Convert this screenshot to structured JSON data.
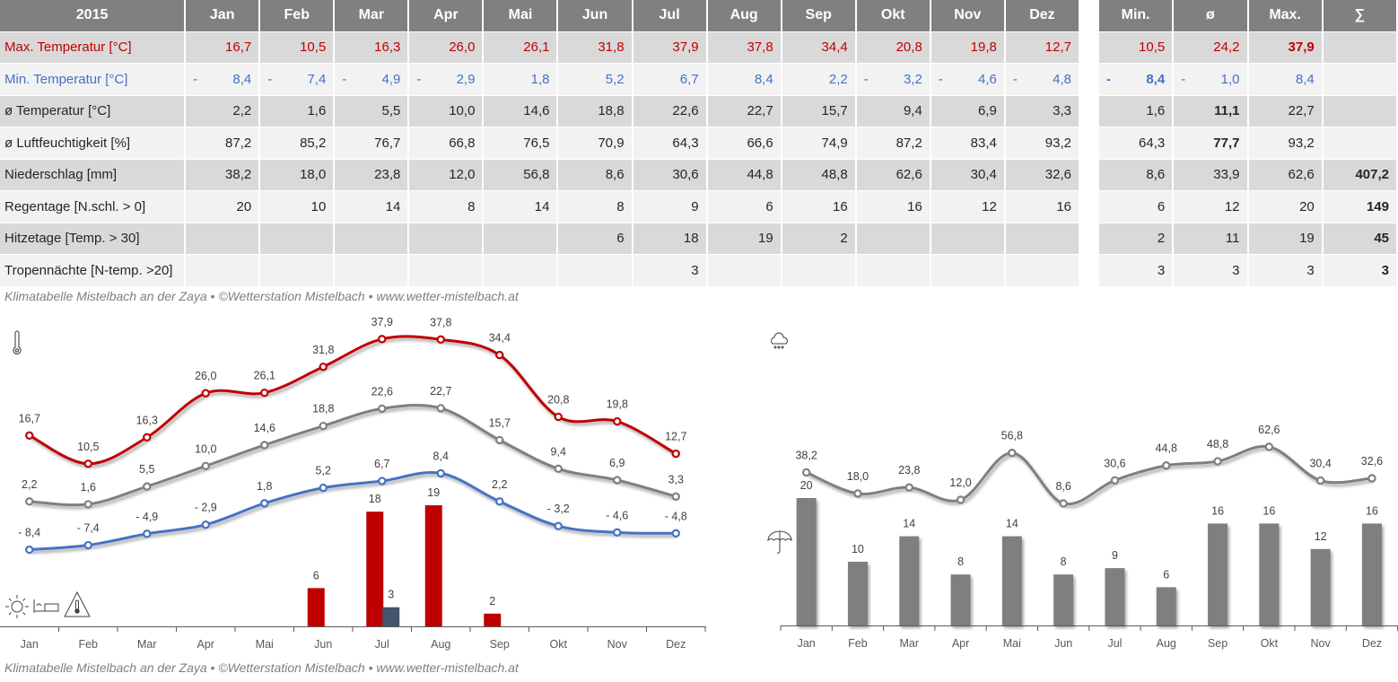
{
  "table": {
    "year_label": "2015",
    "months": [
      "Jan",
      "Feb",
      "Mar",
      "Apr",
      "Mai",
      "Jun",
      "Jul",
      "Aug",
      "Sep",
      "Okt",
      "Nov",
      "Dez"
    ],
    "stats_headers": [
      "Min.",
      "ø",
      "Max.",
      "∑"
    ],
    "rows": [
      {
        "label": "Max. Temperatur [°C]",
        "style": "red",
        "values": [
          "16,7",
          "10,5",
          "16,3",
          "26,0",
          "26,1",
          "31,8",
          "37,9",
          "37,8",
          "34,4",
          "20,8",
          "19,8",
          "12,7"
        ],
        "stats": [
          "10,5",
          "24,2",
          "37,9",
          ""
        ],
        "stats_bold": [
          false,
          false,
          true,
          false
        ]
      },
      {
        "label": "Min. Temperatur [°C]",
        "style": "blue",
        "values": [
          "-8,4",
          "-7,4",
          "-4,9",
          "-2,9",
          "1,8",
          "5,2",
          "6,7",
          "8,4",
          "2,2",
          "-3,2",
          "-4,6",
          "-4,8"
        ],
        "stats": [
          "-8,4",
          "-1,0",
          "8,4",
          ""
        ],
        "stats_bold": [
          true,
          false,
          false,
          false
        ]
      },
      {
        "label": "ø Temperatur [°C]",
        "style": "",
        "values": [
          "2,2",
          "1,6",
          "5,5",
          "10,0",
          "14,6",
          "18,8",
          "22,6",
          "22,7",
          "15,7",
          "9,4",
          "6,9",
          "3,3"
        ],
        "stats": [
          "1,6",
          "11,1",
          "22,7",
          ""
        ],
        "stats_bold": [
          false,
          true,
          false,
          false
        ]
      },
      {
        "label": "ø Luftfeuchtigkeit [%]",
        "style": "",
        "values": [
          "87,2",
          "85,2",
          "76,7",
          "66,8",
          "76,5",
          "70,9",
          "64,3",
          "66,6",
          "74,9",
          "87,2",
          "83,4",
          "93,2"
        ],
        "stats": [
          "64,3",
          "77,7",
          "93,2",
          ""
        ],
        "stats_bold": [
          false,
          true,
          false,
          false
        ]
      },
      {
        "label": "Niederschlag [mm]",
        "style": "",
        "values": [
          "38,2",
          "18,0",
          "23,8",
          "12,0",
          "56,8",
          "8,6",
          "30,6",
          "44,8",
          "48,8",
          "62,6",
          "30,4",
          "32,6"
        ],
        "stats": [
          "8,6",
          "33,9",
          "62,6",
          "407,2"
        ],
        "stats_bold": [
          false,
          false,
          false,
          true
        ]
      },
      {
        "label": "Regentage [N.schl. > 0]",
        "style": "",
        "values": [
          "20",
          "10",
          "14",
          "8",
          "14",
          "8",
          "9",
          "6",
          "16",
          "16",
          "12",
          "16"
        ],
        "stats": [
          "6",
          "12",
          "20",
          "149"
        ],
        "stats_bold": [
          false,
          false,
          false,
          true
        ]
      },
      {
        "label": "Hitzetage [Temp. > 30]",
        "style": "",
        "values": [
          "",
          "",
          "",
          "",
          "",
          "6",
          "18",
          "19",
          "2",
          "",
          "",
          ""
        ],
        "stats": [
          "2",
          "11",
          "19",
          "45"
        ],
        "stats_bold": [
          false,
          false,
          false,
          true
        ]
      },
      {
        "label": "Tropennächte [N-temp. >20]",
        "style": "",
        "values": [
          "",
          "",
          "",
          "",
          "",
          "",
          "3",
          "",
          "",
          "",
          "",
          ""
        ],
        "stats": [
          "3",
          "3",
          "3",
          "3"
        ],
        "stats_bold": [
          false,
          false,
          false,
          true
        ]
      }
    ]
  },
  "footer_text": "Klimatabelle Mistelbach an der Zaya  •  ©Wetterstation Mistelbach  •  www.wetter-mistelbach.at",
  "colors": {
    "max": "#c00000",
    "min": "#4472c4",
    "avg": "#7f7f7f",
    "hitze": "#c00000",
    "tropen": "#44546a",
    "rain": "#7f7f7f",
    "header": "#808080"
  },
  "icons": {
    "temp_chart": "thermometer-icon",
    "rain_chart": "rain-cloud-icon",
    "rain_days": "umbrella-icon",
    "heat_days": "sun-icon",
    "tropical_nights": "bed-icon",
    "warning": "heat-warning-icon"
  },
  "chart_data": [
    {
      "type": "line",
      "title": "",
      "categories": [
        "Jan",
        "Feb",
        "Mar",
        "Apr",
        "Mai",
        "Jun",
        "Jul",
        "Aug",
        "Sep",
        "Okt",
        "Nov",
        "Dez"
      ],
      "series": [
        {
          "name": "Max. Temperatur [°C]",
          "kind": "line",
          "values": [
            16.7,
            10.5,
            16.3,
            26.0,
            26.1,
            31.8,
            37.9,
            37.8,
            34.4,
            20.8,
            19.8,
            12.7
          ],
          "labels": [
            "16,7",
            "10,5",
            "16,3",
            "26,0",
            "26,1",
            "31,8",
            "37,9",
            "37,8",
            "34,4",
            "20,8",
            "19,8",
            "12,7"
          ]
        },
        {
          "name": "ø Temperatur [°C]",
          "kind": "line",
          "values": [
            2.2,
            1.6,
            5.5,
            10.0,
            14.6,
            18.8,
            22.6,
            22.7,
            15.7,
            9.4,
            6.9,
            3.3
          ],
          "labels": [
            "2,2",
            "1,6",
            "5,5",
            "10,0",
            "14,6",
            "18,8",
            "22,6",
            "22,7",
            "15,7",
            "9,4",
            "6,9",
            "3,3"
          ]
        },
        {
          "name": "Min. Temperatur [°C]",
          "kind": "line",
          "values": [
            -8.4,
            -7.4,
            -4.9,
            -2.9,
            1.8,
            5.2,
            6.7,
            8.4,
            2.2,
            -3.2,
            -4.6,
            -4.8
          ],
          "labels": [
            "- 8,4",
            "- 7,4",
            "- 4,9",
            "- 2,9",
            "1,8",
            "5,2",
            "6,7",
            "8,4",
            "2,2",
            "- 3,2",
            "- 4,6",
            "- 4,8"
          ]
        },
        {
          "name": "Hitzetage [Temp. > 30]",
          "kind": "bar",
          "values": [
            null,
            null,
            null,
            null,
            null,
            6,
            18,
            19,
            2,
            null,
            null,
            null
          ]
        },
        {
          "name": "Tropennächte [N-temp. >20]",
          "kind": "bar",
          "values": [
            null,
            null,
            null,
            null,
            null,
            null,
            3,
            null,
            null,
            null,
            null,
            null
          ]
        }
      ],
      "xlabel": "",
      "ylabel": "",
      "grid": false,
      "legend": "none"
    },
    {
      "type": "line",
      "title": "",
      "categories": [
        "Jan",
        "Feb",
        "Mar",
        "Apr",
        "Mai",
        "Jun",
        "Jul",
        "Aug",
        "Sep",
        "Okt",
        "Nov",
        "Dez"
      ],
      "series": [
        {
          "name": "Niederschlag [mm]",
          "kind": "line",
          "values": [
            38.2,
            18.0,
            23.8,
            12.0,
            56.8,
            8.6,
            30.6,
            44.8,
            48.8,
            62.6,
            30.4,
            32.6
          ],
          "labels": [
            "38,2",
            "18,0",
            "23,8",
            "12,0",
            "56,8",
            "8,6",
            "30,6",
            "44,8",
            "48,8",
            "62,6",
            "30,4",
            "32,6"
          ]
        },
        {
          "name": "Regentage [N.schl. > 0]",
          "kind": "bar",
          "values": [
            20,
            10,
            14,
            8,
            14,
            8,
            9,
            6,
            16,
            16,
            12,
            16
          ]
        }
      ],
      "xlabel": "",
      "ylabel": "",
      "grid": false,
      "legend": "none"
    }
  ]
}
